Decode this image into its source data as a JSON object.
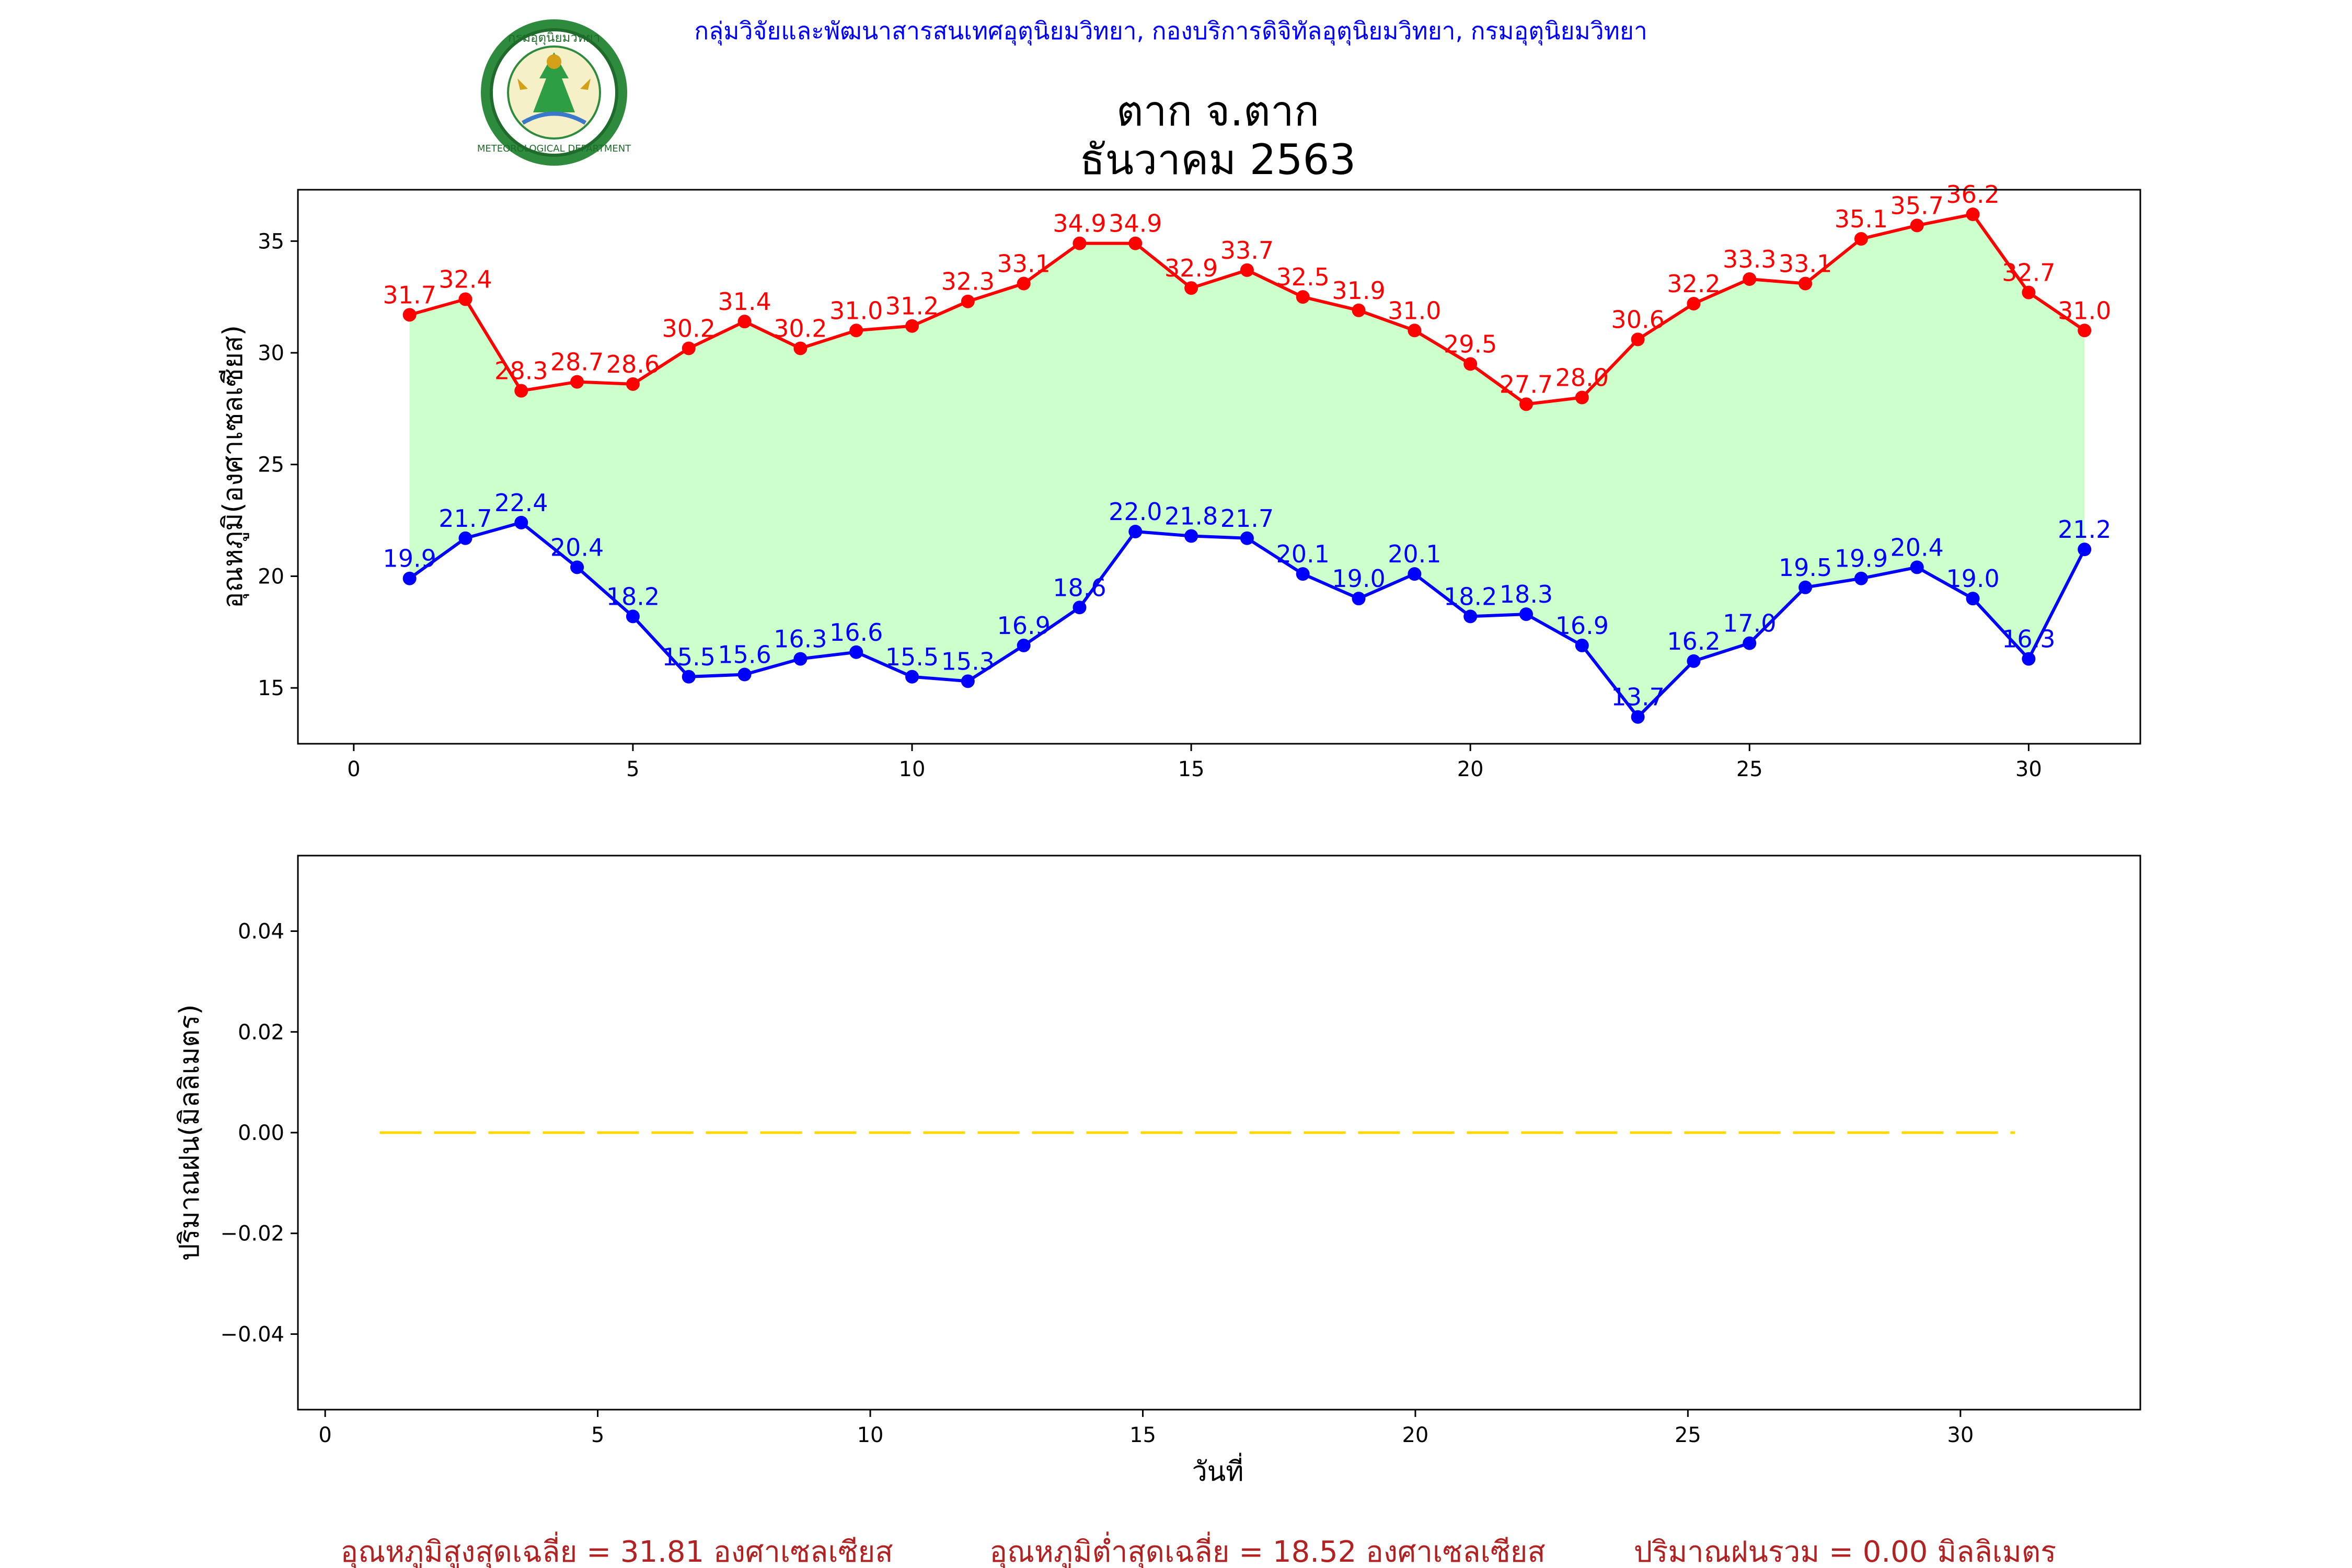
{
  "header": {
    "department_line": "กลุ่มวิจัยและพัฒนาสารสนเทศอุตุนิยมวิทยา, กองบริการดิจิทัลอุตุนิยมวิทยา, กรมอุตุนิยมวิทยา",
    "logo": {
      "icon": "meteorological-department-seal-icon",
      "seal_text_top": "กรมอุตุนิยมวิทยา",
      "seal_text_bottom": "METEOROLOGICAL DEPARTMENT"
    },
    "title_line1": "ตาก จ.ตาก",
    "title_line2": "ธันวาคม 2563"
  },
  "colors": {
    "max_line": "#ff0000",
    "min_line": "#0000ff",
    "fill_between": "#ccffcc",
    "rain_line": "#ffd700",
    "summary_text": "#b22222",
    "department_text": "#0000ff"
  },
  "chart_data": [
    {
      "type": "line",
      "ylabel": "อุณหภูมิ(องศาเซลเซียส)",
      "xlabel": "",
      "xlim": [
        -1,
        32
      ],
      "ylim": [
        12.5,
        37.3
      ],
      "xticks": [
        0,
        5,
        10,
        15,
        20,
        25,
        30
      ],
      "yticks": [
        15,
        20,
        25,
        30,
        35
      ],
      "x": [
        1,
        2,
        3,
        4,
        5,
        6,
        7,
        8,
        9,
        10,
        11,
        12,
        13,
        14,
        15,
        16,
        17,
        18,
        19,
        20,
        21,
        22,
        23,
        24,
        25,
        26,
        27,
        28,
        29,
        30,
        31
      ],
      "series": [
        {
          "values": [
            31.7,
            32.4,
            28.3,
            28.7,
            28.6,
            30.2,
            31.4,
            30.2,
            31.0,
            31.2,
            32.3,
            33.1,
            34.9,
            34.9,
            32.9,
            33.7,
            32.5,
            31.9,
            31.0,
            29.5,
            27.7,
            28.0,
            30.6,
            32.2,
            33.3,
            33.1,
            35.1,
            35.7,
            36.2,
            32.7,
            31.0
          ],
          "labels": [
            "31.7",
            "32.4",
            "28.3",
            "28.7",
            "28.6",
            "30.2",
            "31.4",
            "30.2",
            "31.0",
            "31.2",
            "32.3",
            "33.1",
            "34.9",
            "34.9",
            "32.9",
            "33.7",
            "32.5",
            "31.9",
            "31.0",
            "29.5",
            "27.7",
            "28.0",
            "30.6",
            "32.2",
            "33.3",
            "33.1",
            "35.1",
            "35.7",
            "36.2",
            "32.7",
            "31.0"
          ],
          "color": "#ff0000"
        },
        {
          "values": [
            19.9,
            21.7,
            22.4,
            20.4,
            18.2,
            15.5,
            15.6,
            16.3,
            16.6,
            15.5,
            15.3,
            16.9,
            18.6,
            22.0,
            21.8,
            21.7,
            20.1,
            19.0,
            20.1,
            18.2,
            18.3,
            16.9,
            13.7,
            16.2,
            17.0,
            19.5,
            19.9,
            20.4,
            19.0,
            16.3,
            21.2
          ],
          "labels": [
            "19.9",
            "21.7",
            "22.4",
            "20.4",
            "18.2",
            "15.5",
            "15.6",
            "16.3",
            "16.6",
            "15.5",
            "15.3",
            "16.9",
            "18.6",
            "22.0",
            "21.8",
            "21.7",
            "20.1",
            "19.0",
            "20.1",
            "18.2",
            "18.3",
            "16.9",
            "13.7",
            "16.2",
            "17.0",
            "19.5",
            "19.9",
            "20.4",
            "19.0",
            "16.3",
            "21.2"
          ],
          "color": "#0000ff"
        }
      ],
      "fill_between": true,
      "grid": false
    },
    {
      "type": "line",
      "ylabel": "ปริมาณฝน(มิลลิเมตร)",
      "xlabel": "วันที่",
      "xlim": [
        -0.5,
        33.3
      ],
      "ylim": [
        -0.055,
        0.055
      ],
      "xticks": [
        0,
        5,
        10,
        15,
        20,
        25,
        30
      ],
      "yticks": [
        -0.04,
        -0.02,
        0.0,
        0.02,
        0.04
      ],
      "ytick_labels": [
        "−0.04",
        "−0.02",
        "0.00",
        "0.02",
        "0.04"
      ],
      "x": [
        1,
        2,
        3,
        4,
        5,
        6,
        7,
        8,
        9,
        10,
        11,
        12,
        13,
        14,
        15,
        16,
        17,
        18,
        19,
        20,
        21,
        22,
        23,
        24,
        25,
        26,
        27,
        28,
        29,
        30,
        31
      ],
      "series": [
        {
          "values": [
            0,
            0,
            0,
            0,
            0,
            0,
            0,
            0,
            0,
            0,
            0,
            0,
            0,
            0,
            0,
            0,
            0,
            0,
            0,
            0,
            0,
            0,
            0,
            0,
            0,
            0,
            0,
            0,
            0,
            0,
            0
          ],
          "color": "#ffd700",
          "style": "dashed"
        }
      ],
      "grid": false
    }
  ],
  "summary": {
    "avg_max": "อุณหภูมิสูงสุดเฉลี่ย = 31.81 องศาเซลเซียส",
    "avg_min": "อุณหภูมิต่ำสุดเฉลี่ย = 18.52 องศาเซลเซียส",
    "total_rain": "ปริมาณฝนรวม = 0.00 มิลลิเมตร"
  }
}
